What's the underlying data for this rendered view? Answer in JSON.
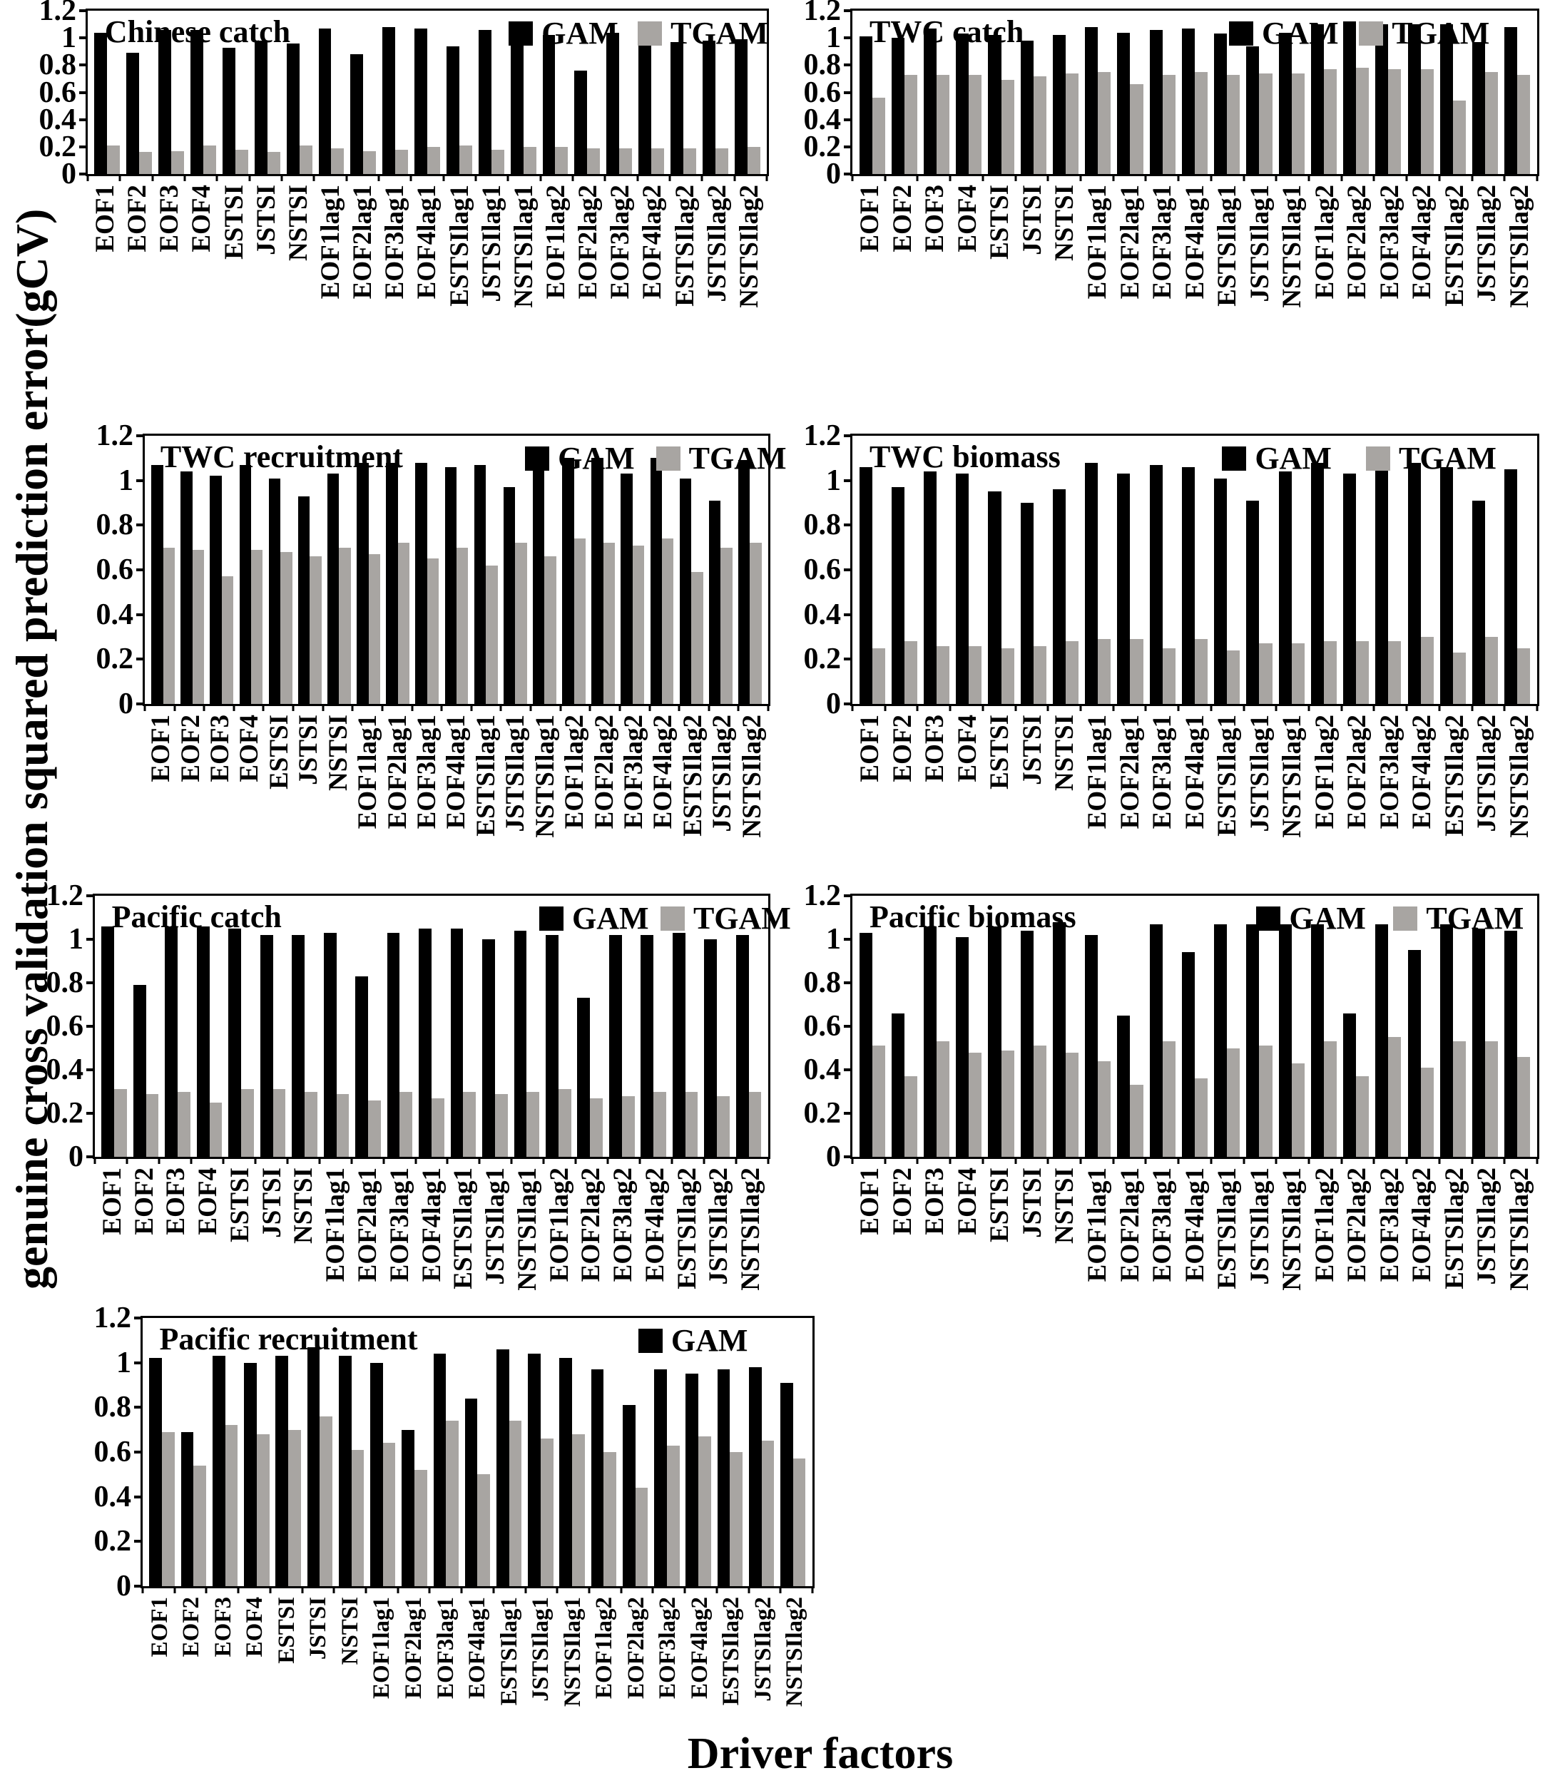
{
  "figure": {
    "ylabel": "genuine cross validation squared prediction error(gCV)",
    "xlabel": "Driver factors"
  },
  "axis": {
    "ylim": [
      0,
      1.2
    ],
    "tick_values": [
      0,
      0.2,
      0.4,
      0.6,
      0.8,
      1,
      1.2
    ],
    "tick_labels": [
      "0",
      "0.2",
      "0.4",
      "0.6",
      "0.8",
      "1",
      "1.2"
    ],
    "grid": "off",
    "legend_position": "top-right-inside"
  },
  "colors": {
    "gam": "#000000",
    "tgam": "#a8a5a2"
  },
  "chart_data": [
    {
      "type": "bar",
      "title": "Chinese catch",
      "legend": [
        "GAM",
        "TGAM"
      ],
      "ylim": [
        0,
        1.2
      ],
      "categories": [
        "EOF1",
        "EOF2",
        "EOF3",
        "EOF4",
        "ESTSI",
        "JSTSI",
        "NSTSI",
        "EOF1lag1",
        "EOF2lag1",
        "EOF3lag1",
        "EOF4lag1",
        "ESTSIlag1",
        "JSTSIlag1",
        "NSTSIlag1",
        "EOF1lag2",
        "EOF2lag2",
        "EOF3lag2",
        "EOF4lag2",
        "ESTSIlag2",
        "JSTSIlag2",
        "NSTSIlag2"
      ],
      "series": [
        {
          "name": "GAM",
          "color_key": "gam",
          "values": [
            1.04,
            0.89,
            1.06,
            1.06,
            0.93,
            0.98,
            0.96,
            1.07,
            0.88,
            1.08,
            1.07,
            0.94,
            1.06,
            1.01,
            1.02,
            0.76,
            1.04,
            1.05,
            0.97,
            0.98,
            0.99
          ]
        },
        {
          "name": "TGAM",
          "color_key": "tgam",
          "values": [
            0.21,
            0.16,
            0.17,
            0.21,
            0.18,
            0.16,
            0.21,
            0.19,
            0.17,
            0.18,
            0.2,
            0.21,
            0.18,
            0.2,
            0.2,
            0.19,
            0.19,
            0.19,
            0.19,
            0.19,
            0.2
          ]
        }
      ]
    },
    {
      "type": "bar",
      "title": "TWC catch",
      "legend": [
        "GAM",
        "TGAM"
      ],
      "ylim": [
        0,
        1.2
      ],
      "categories": [
        "EOF1",
        "EOF2",
        "EOF3",
        "EOF4",
        "ESTSI",
        "JSTSI",
        "NSTSI",
        "EOF1lag1",
        "EOF2lag1",
        "EOF3lag1",
        "EOF4lag1",
        "ESTSIlag1",
        "JSTSIlag1",
        "NSTSIlag1",
        "EOF1lag2",
        "EOF2lag2",
        "EOF3lag2",
        "EOF4lag2",
        "ESTSIlag2",
        "JSTSIlag2",
        "NSTSIlag2"
      ],
      "series": [
        {
          "name": "GAM",
          "color_key": "gam",
          "values": [
            1.01,
            1.0,
            1.07,
            1.03,
            1.02,
            0.98,
            1.02,
            1.08,
            1.04,
            1.06,
            1.07,
            1.03,
            0.94,
            1.04,
            1.1,
            1.12,
            1.1,
            1.1,
            1.1,
            0.97,
            1.08
          ]
        },
        {
          "name": "TGAM",
          "color_key": "tgam",
          "values": [
            0.56,
            0.73,
            0.73,
            0.73,
            0.69,
            0.72,
            0.74,
            0.75,
            0.66,
            0.73,
            0.75,
            0.73,
            0.74,
            0.74,
            0.77,
            0.78,
            0.77,
            0.77,
            0.54,
            0.75,
            0.73
          ]
        }
      ]
    },
    {
      "type": "bar",
      "title": "TWC recruitment",
      "legend": [
        "GAM",
        "TGAM"
      ],
      "ylim": [
        0,
        1.2
      ],
      "categories": [
        "EOF1",
        "EOF2",
        "EOF3",
        "EOF4",
        "ESTSI",
        "JSTSI",
        "NSTSI",
        "EOF1lag1",
        "EOF2lag1",
        "EOF3lag1",
        "EOF4lag1",
        "ESTSIlag1",
        "JSTSIlag1",
        "NSTSIlag1",
        "EOF1lag2",
        "EOF2lag2",
        "EOF3lag2",
        "EOF4lag2",
        "ESTSIlag2",
        "JSTSIlag2",
        "NSTSIlag2"
      ],
      "series": [
        {
          "name": "GAM",
          "color_key": "gam",
          "values": [
            1.07,
            1.04,
            1.02,
            1.07,
            1.01,
            0.93,
            1.03,
            1.08,
            1.08,
            1.08,
            1.06,
            1.07,
            0.97,
            1.09,
            1.1,
            1.1,
            1.03,
            1.1,
            1.01,
            0.91,
            1.09
          ]
        },
        {
          "name": "TGAM",
          "color_key": "tgam",
          "values": [
            0.7,
            0.69,
            0.57,
            0.69,
            0.68,
            0.66,
            0.7,
            0.67,
            0.72,
            0.65,
            0.7,
            0.62,
            0.72,
            0.66,
            0.74,
            0.72,
            0.71,
            0.74,
            0.59,
            0.7,
            0.72
          ]
        }
      ]
    },
    {
      "type": "bar",
      "title": "TWC biomass",
      "legend": [
        "GAM",
        "TGAM"
      ],
      "ylim": [
        0,
        1.2
      ],
      "categories": [
        "EOF1",
        "EOF2",
        "EOF3",
        "EOF4",
        "ESTSI",
        "JSTSI",
        "NSTSI",
        "EOF1lag1",
        "EOF2lag1",
        "EOF3lag1",
        "EOF4lag1",
        "ESTSIlag1",
        "JSTSIlag1",
        "NSTSIlag1",
        "EOF1lag2",
        "EOF2lag2",
        "EOF3lag2",
        "EOF4lag2",
        "ESTSIlag2",
        "JSTSIlag2",
        "NSTSIlag2"
      ],
      "series": [
        {
          "name": "GAM",
          "color_key": "gam",
          "values": [
            1.06,
            0.97,
            1.04,
            1.03,
            0.95,
            0.9,
            0.96,
            1.08,
            1.03,
            1.07,
            1.06,
            1.01,
            0.91,
            1.04,
            1.08,
            1.03,
            1.08,
            1.08,
            1.06,
            0.91,
            1.05
          ]
        },
        {
          "name": "TGAM",
          "color_key": "tgam",
          "values": [
            0.25,
            0.28,
            0.26,
            0.26,
            0.25,
            0.26,
            0.28,
            0.29,
            0.29,
            0.25,
            0.29,
            0.24,
            0.27,
            0.27,
            0.28,
            0.28,
            0.28,
            0.3,
            0.23,
            0.3,
            0.25
          ]
        }
      ]
    },
    {
      "type": "bar",
      "title": "Pacific catch",
      "legend": [
        "GAM",
        "TGAM"
      ],
      "ylim": [
        0,
        1.2
      ],
      "categories": [
        "EOF1",
        "EOF2",
        "EOF3",
        "EOF4",
        "ESTSI",
        "JSTSI",
        "NSTSI",
        "EOF1lag1",
        "EOF2lag1",
        "EOF3lag1",
        "EOF4lag1",
        "ESTSIlag1",
        "JSTSIlag1",
        "NSTSIlag1",
        "EOF1lag2",
        "EOF2lag2",
        "EOF3lag2",
        "EOF4lag2",
        "ESTSIlag2",
        "JSTSIlag2",
        "NSTSIlag2"
      ],
      "series": [
        {
          "name": "GAM",
          "color_key": "gam",
          "values": [
            1.06,
            0.79,
            1.06,
            1.06,
            1.05,
            1.02,
            1.02,
            1.03,
            0.83,
            1.03,
            1.05,
            1.05,
            1.0,
            1.04,
            1.02,
            0.73,
            1.02,
            1.02,
            1.03,
            1.0,
            1.02
          ]
        },
        {
          "name": "TGAM",
          "color_key": "tgam",
          "values": [
            0.31,
            0.29,
            0.3,
            0.25,
            0.31,
            0.31,
            0.3,
            0.29,
            0.26,
            0.3,
            0.27,
            0.3,
            0.29,
            0.3,
            0.31,
            0.27,
            0.28,
            0.3,
            0.3,
            0.28,
            0.3
          ]
        }
      ]
    },
    {
      "type": "bar",
      "title": "Pacific biomass",
      "legend": [
        "GAM",
        "TGAM"
      ],
      "ylim": [
        0,
        1.2
      ],
      "categories": [
        "EOF1",
        "EOF2",
        "EOF3",
        "EOF4",
        "ESTSI",
        "JSTSI",
        "NSTSI",
        "EOF1lag1",
        "EOF2lag1",
        "EOF3lag1",
        "EOF4lag1",
        "ESTSIlag1",
        "JSTSIlag1",
        "NSTSIlag1",
        "EOF1lag2",
        "EOF2lag2",
        "EOF3lag2",
        "EOF4lag2",
        "ESTSIlag2",
        "JSTSIlag2",
        "NSTSIlag2"
      ],
      "series": [
        {
          "name": "GAM",
          "color_key": "gam",
          "values": [
            1.03,
            0.66,
            1.06,
            1.01,
            1.06,
            1.04,
            1.08,
            1.02,
            0.65,
            1.07,
            0.94,
            1.07,
            1.07,
            1.07,
            1.07,
            0.66,
            1.07,
            0.95,
            1.07,
            1.05,
            1.04
          ]
        },
        {
          "name": "TGAM",
          "color_key": "tgam",
          "values": [
            0.51,
            0.37,
            0.53,
            0.48,
            0.49,
            0.51,
            0.48,
            0.44,
            0.33,
            0.53,
            0.36,
            0.5,
            0.51,
            0.43,
            0.53,
            0.37,
            0.55,
            0.41,
            0.53,
            0.53,
            0.46
          ]
        }
      ]
    },
    {
      "type": "bar",
      "title": "Pacific recruitment",
      "legend": [
        "GAM"
      ],
      "ylim": [
        0,
        1.2
      ],
      "categories": [
        "EOF1",
        "EOF2",
        "EOF3",
        "EOF4",
        "ESTSI",
        "JSTSI",
        "NSTSI",
        "EOF1lag1",
        "EOF2lag1",
        "EOF3lag1",
        "EOF4lag1",
        "ESTSIlag1",
        "JSTSIlag1",
        "NSTSIlag1",
        "EOF1lag2",
        "EOF2lag2",
        "EOF3lag2",
        "EOF4lag2",
        "ESTSIlag2",
        "JSTSIlag2",
        "NSTSIlag2"
      ],
      "series": [
        {
          "name": "GAM",
          "color_key": "gam",
          "values": [
            1.02,
            0.69,
            1.03,
            1.0,
            1.03,
            1.07,
            1.03,
            1.0,
            0.7,
            1.04,
            0.84,
            1.06,
            1.04,
            1.02,
            0.97,
            0.81,
            0.97,
            0.95,
            0.97,
            0.98,
            0.91
          ]
        },
        {
          "name": "TGAM",
          "color_key": "tgam",
          "values": [
            0.69,
            0.54,
            0.72,
            0.68,
            0.7,
            0.76,
            0.61,
            0.64,
            0.52,
            0.74,
            0.5,
            0.74,
            0.66,
            0.68,
            0.6,
            0.44,
            0.63,
            0.67,
            0.6,
            0.65,
            0.57
          ]
        }
      ]
    }
  ]
}
